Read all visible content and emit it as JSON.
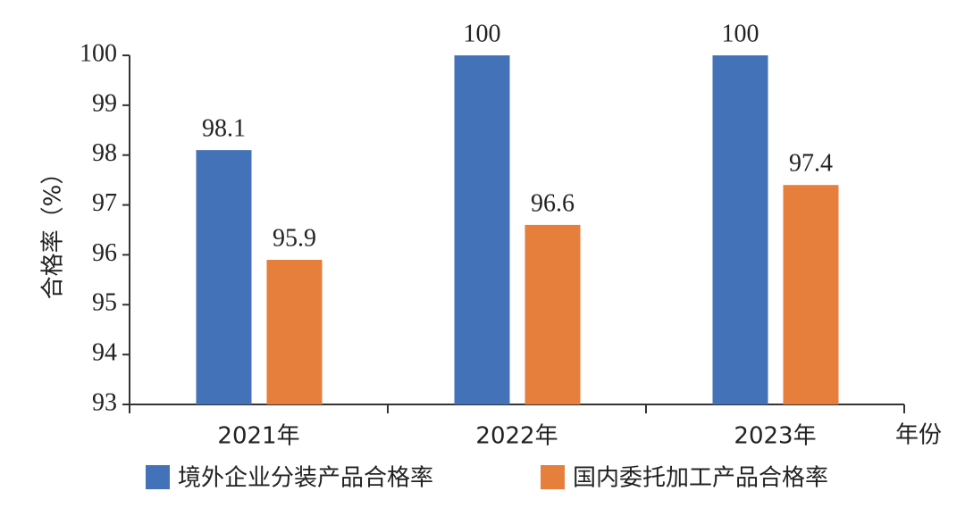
{
  "chart_data": {
    "type": "bar",
    "y_label": "合格率（%）",
    "x_label": "年份",
    "categories": [
      "2021年",
      "2022年",
      "2023年"
    ],
    "series": [
      {
        "name": "境外企业分装产品合格率",
        "color": "#4472b8",
        "values": [
          98.1,
          100,
          100
        ]
      },
      {
        "name": "国内委托加工产品合格率",
        "color": "#e67e3c",
        "values": [
          95.9,
          96.6,
          97.4
        ]
      }
    ],
    "ylim": [
      93,
      100
    ],
    "yticks": [
      93,
      94,
      95,
      96,
      97,
      98,
      99,
      100
    ]
  }
}
